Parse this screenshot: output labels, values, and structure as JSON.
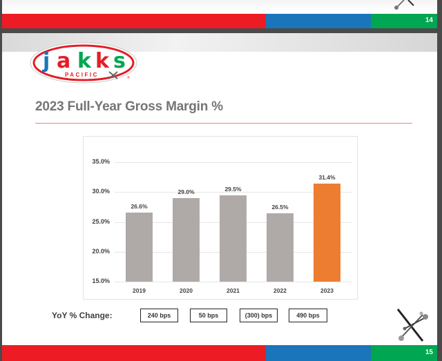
{
  "previous_slide": {
    "page_number": "14"
  },
  "slide": {
    "page_number": "15",
    "logo": {
      "brand": "jakks",
      "letters": [
        "j",
        "a",
        "k",
        "k",
        "s"
      ],
      "subtitle": "PACIFIC",
      "registered": "®"
    },
    "title": "2023 Full-Year Gross Margin %",
    "yoy": {
      "label": "YoY % Change:",
      "values": [
        "240 bps",
        "50 bps",
        "(300) bps",
        "490 bps"
      ]
    }
  },
  "colors": {
    "red": "#ED1C24",
    "blue": "#1B75BB",
    "green": "#00A651",
    "bar_gray": "#AFAAA8",
    "bar_highlight": "#ED7D31"
  },
  "chart_data": {
    "type": "bar",
    "title": "2023 Full-Year Gross Margin %",
    "categories": [
      "2019",
      "2020",
      "2021",
      "2022",
      "2023"
    ],
    "values": [
      26.6,
      29.0,
      29.5,
      26.5,
      31.4
    ],
    "value_labels": [
      "26.6%",
      "29.0%",
      "29.5%",
      "26.5%",
      "31.4%"
    ],
    "highlight_index": 4,
    "xlabel": "",
    "ylabel": "",
    "ylim": [
      15.0,
      35.0
    ],
    "yticks": [
      "35.0%",
      "30.0%",
      "25.0%",
      "20.0%",
      "15.0%"
    ],
    "grid": true,
    "legend": "none"
  }
}
